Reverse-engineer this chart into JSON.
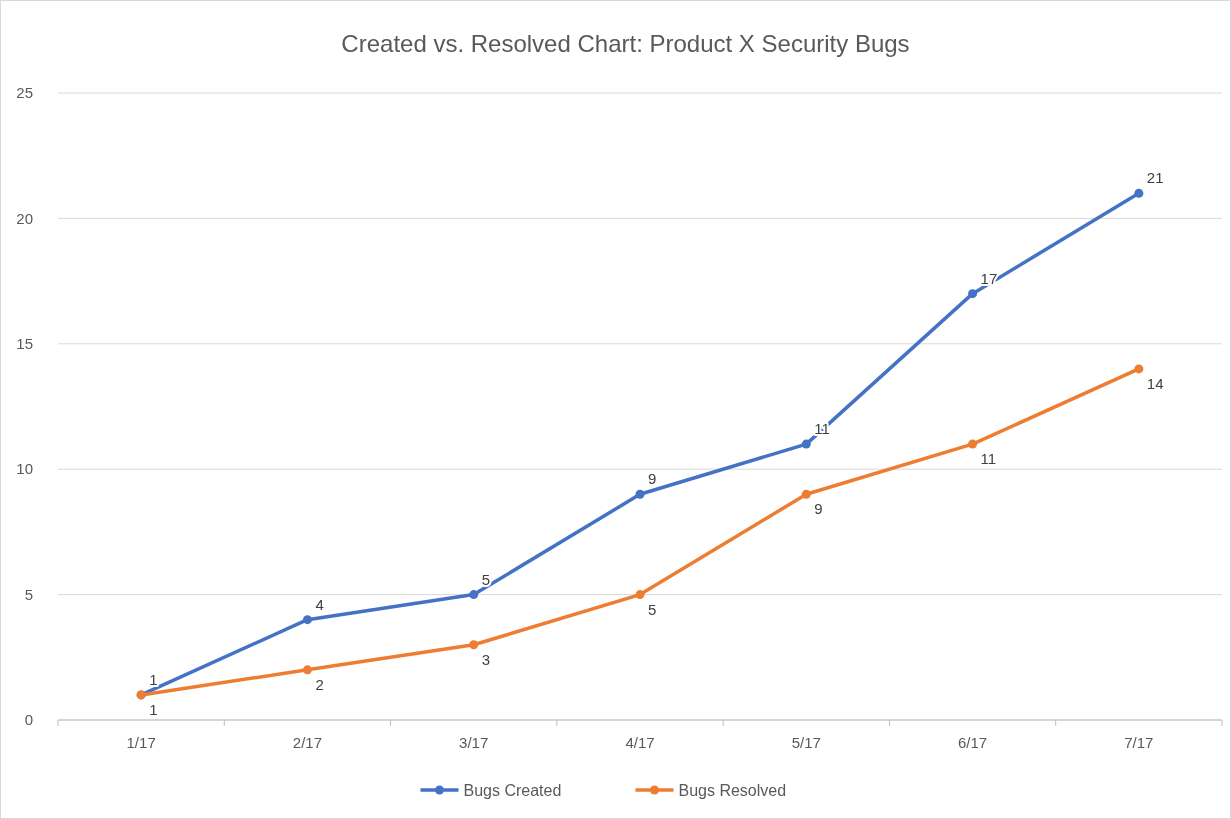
{
  "chart_data": {
    "type": "line",
    "title": "Created vs. Resolved Chart: Product X Security Bugs",
    "categories": [
      "1/17",
      "2/17",
      "3/17",
      "4/17",
      "5/17",
      "6/17",
      "7/17"
    ],
    "series": [
      {
        "name": "Bugs Created",
        "color": "#4472c4",
        "values": [
          1,
          4,
          5,
          9,
          11,
          17,
          21
        ]
      },
      {
        "name": "Bugs Resolved",
        "color": "#ed7d31",
        "values": [
          1,
          2,
          3,
          5,
          9,
          11,
          14
        ]
      }
    ],
    "ylim": [
      0,
      25
    ],
    "yticks": [
      0,
      5,
      10,
      15,
      20,
      25
    ],
    "grid": "y",
    "legend": "bottom",
    "marker": "circle",
    "data_labels": true
  }
}
